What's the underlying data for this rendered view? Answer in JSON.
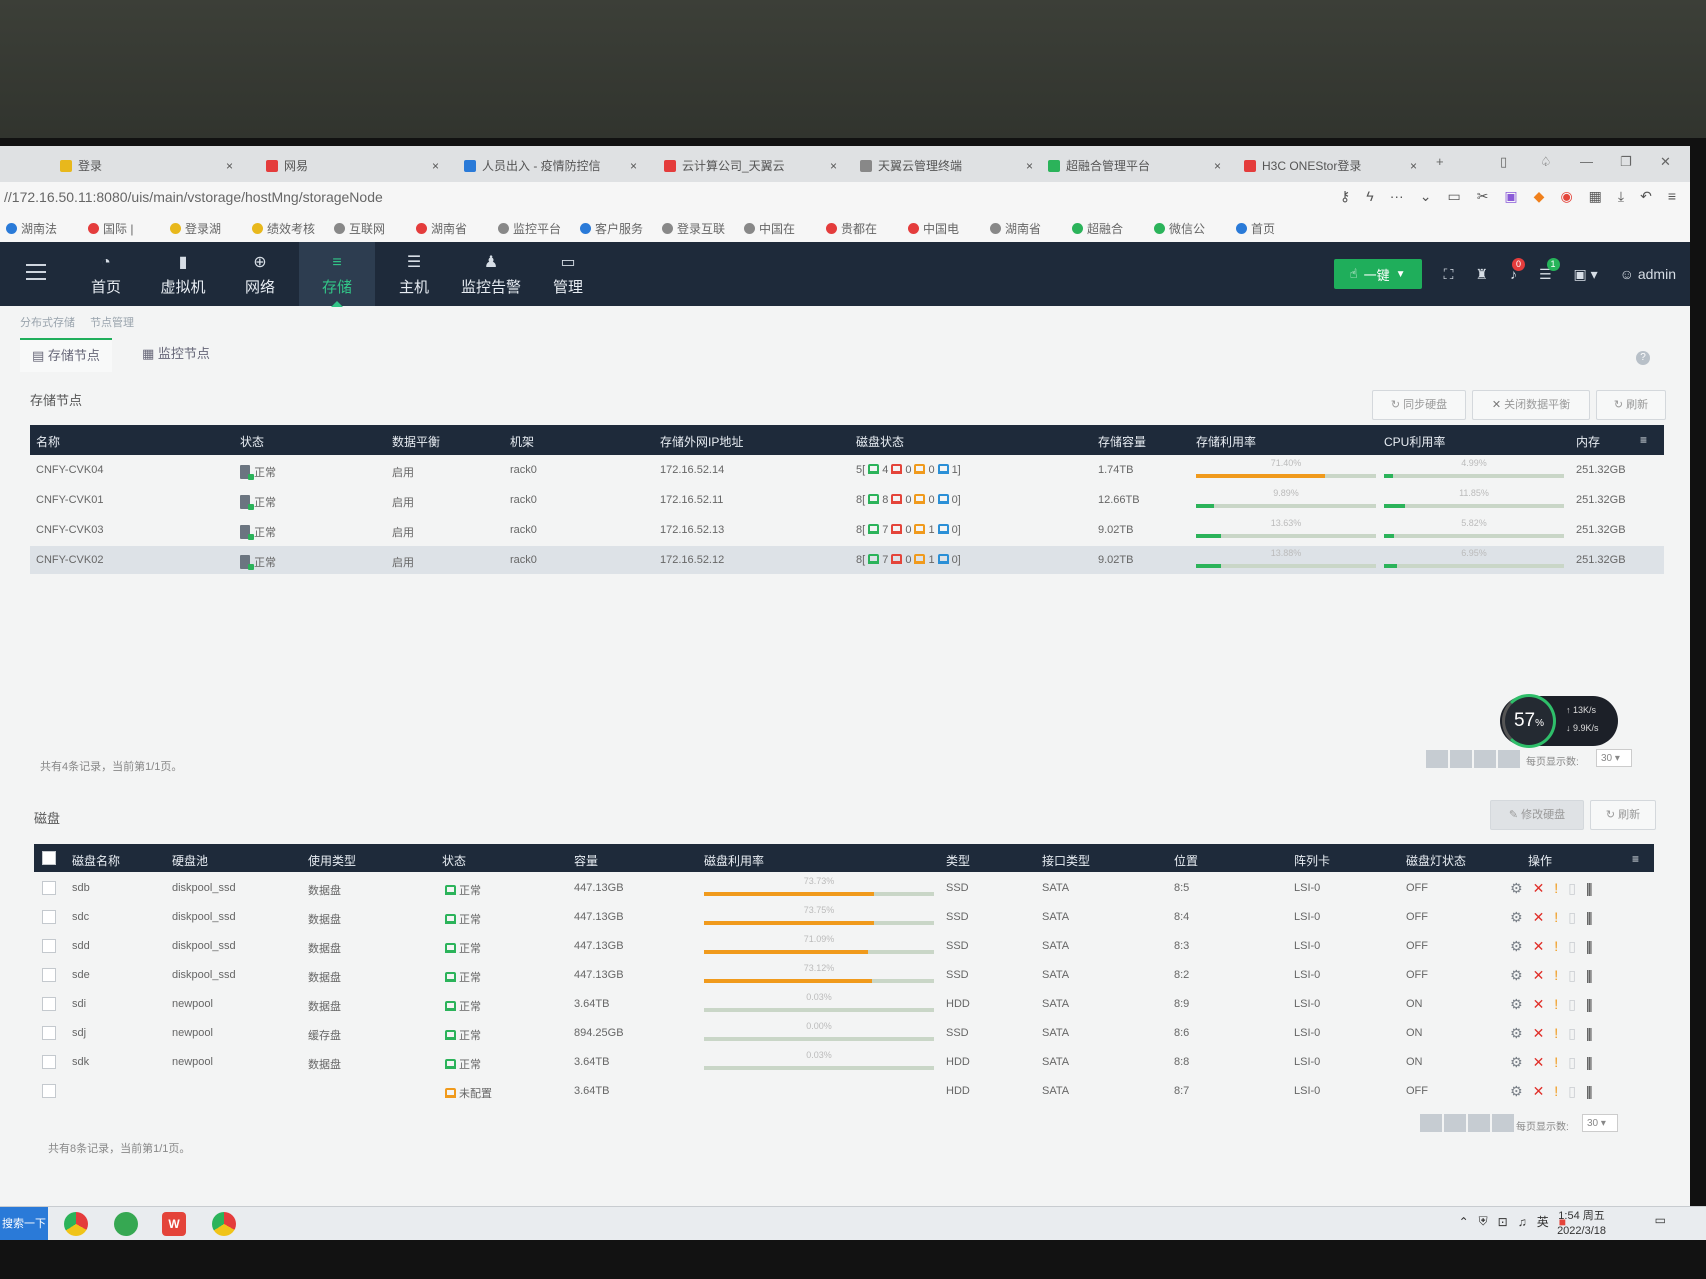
{
  "browser": {
    "tabs": [
      {
        "title": "登录",
        "color": "#e8b81c"
      },
      {
        "title": "网易",
        "color": "#e43c3c"
      },
      {
        "title": "人员出入 - 疫情防控信",
        "color": "#2a7ad8"
      },
      {
        "title": "云计算公司_天翼云",
        "color": "#e43c3c"
      },
      {
        "title": "天翼云管理终端",
        "color": "#888888"
      },
      {
        "title": "超融合管理平台",
        "color": "#2bb35a"
      },
      {
        "title": "H3C ONEStor登录",
        "color": "#e43c3c"
      }
    ],
    "new_tab": "+",
    "url": "//172.16.50.11:8080/uis/main/vstorage/hostMng/storageNode",
    "bookmarks": [
      {
        "label": "湖南法",
        "color": "#2a7ad8"
      },
      {
        "label": "国际 | ",
        "color": "#e43c3c"
      },
      {
        "label": "登录湖",
        "color": "#e8b81c"
      },
      {
        "label": "绩效考核",
        "color": "#e8b81c"
      },
      {
        "label": "互联网",
        "color": "#888888"
      },
      {
        "label": "湖南省",
        "color": "#e43c3c"
      },
      {
        "label": "监控平台",
        "color": "#888888"
      },
      {
        "label": "客户服务",
        "color": "#2a7ad8"
      },
      {
        "label": "登录互联",
        "color": "#888888"
      },
      {
        "label": "中国在",
        "color": "#888888"
      },
      {
        "label": "贵都在",
        "color": "#e43c3c"
      },
      {
        "label": "中国电",
        "color": "#e43c3c"
      },
      {
        "label": "湖南省",
        "color": "#888888"
      },
      {
        "label": "超融合",
        "color": "#2bb35a"
      },
      {
        "label": "微信公",
        "color": "#2bb35a"
      },
      {
        "label": "首页",
        "color": "#2a7ad8"
      }
    ]
  },
  "app": {
    "nav": [
      {
        "label": "首页",
        "icon": "dashboard-icon",
        "glyph": "◔"
      },
      {
        "label": "虚拟机",
        "icon": "vm-icon",
        "glyph": "▮"
      },
      {
        "label": "网络",
        "icon": "globe-icon",
        "glyph": "⊕"
      },
      {
        "label": "存储",
        "icon": "storage-icon",
        "glyph": "≡"
      },
      {
        "label": "主机",
        "icon": "server-icon",
        "glyph": "☰"
      },
      {
        "label": "监控告警",
        "icon": "bell-icon",
        "glyph": "♟"
      },
      {
        "label": "管理",
        "icon": "monitor-icon",
        "glyph": "▭"
      }
    ],
    "one_click_label": "一键",
    "alert_count": "0",
    "task_count": "1",
    "user": "admin"
  },
  "breadcrumb": [
    "分布式存储",
    "节点管理"
  ],
  "subtabs": [
    "存储节点",
    "监控节点"
  ],
  "nodes": {
    "title": "存储节点",
    "buttons": {
      "sync": "同步硬盘",
      "close_balance": "关闭数据平衡",
      "refresh": "刷新"
    },
    "columns": [
      "名称",
      "状态",
      "数据平衡",
      "机架",
      "存储外网IP地址",
      "磁盘状态",
      "存储容量",
      "存储利用率",
      "CPU利用率",
      "内存"
    ],
    "rows": [
      {
        "name": "CNFY-CVK04",
        "status": "正常",
        "balance": "启用",
        "rack": "rack0",
        "ip": "172.16.52.14",
        "disk_total": "5[",
        "d1": "4",
        "d2": "0",
        "d3": "0",
        "d4": "1]",
        "capacity": "1.74TB",
        "usage": "71.40%",
        "usage_val": 71.4,
        "cpu": "4.99%",
        "cpu_val": 4.99,
        "mem": "251.32GB"
      },
      {
        "name": "CNFY-CVK01",
        "status": "正常",
        "balance": "启用",
        "rack": "rack0",
        "ip": "172.16.52.11",
        "disk_total": "8[",
        "d1": "8",
        "d2": "0",
        "d3": "0",
        "d4": "0]",
        "capacity": "12.66TB",
        "usage": "9.89%",
        "usage_val": 9.89,
        "cpu": "11.85%",
        "cpu_val": 11.85,
        "mem": "251.32GB"
      },
      {
        "name": "CNFY-CVK03",
        "status": "正常",
        "balance": "启用",
        "rack": "rack0",
        "ip": "172.16.52.13",
        "disk_total": "8[",
        "d1": "7",
        "d2": "0",
        "d3": "1",
        "d4": "0]",
        "capacity": "9.02TB",
        "usage": "13.63%",
        "usage_val": 13.63,
        "cpu": "5.82%",
        "cpu_val": 5.82,
        "mem": "251.32GB"
      },
      {
        "name": "CNFY-CVK02",
        "status": "正常",
        "balance": "启用",
        "rack": "rack0",
        "ip": "172.16.52.12",
        "disk_total": "8[",
        "d1": "7",
        "d2": "0",
        "d3": "1",
        "d4": "0]",
        "capacity": "9.02TB",
        "usage": "13.88%",
        "usage_val": 13.88,
        "cpu": "6.95%",
        "cpu_val": 6.95,
        "mem": "251.32GB"
      }
    ],
    "summary": "共有4条记录，当前第1/1页。",
    "page_size_label": "每页显示数:",
    "page_size": "30"
  },
  "gauge": {
    "percent": "57",
    "unit": "%",
    "up": "13K/s",
    "down": "9.9K/s"
  },
  "disks": {
    "title": "磁盘",
    "buttons": {
      "edit": "修改硬盘",
      "refresh": "刷新"
    },
    "columns": [
      "磁盘名称",
      "硬盘池",
      "使用类型",
      "状态",
      "容量",
      "磁盘利用率",
      "类型",
      "接口类型",
      "位置",
      "阵列卡",
      "磁盘灯状态",
      "操作"
    ],
    "rows": [
      {
        "name": "sdb",
        "pool": "diskpool_ssd",
        "use": "数据盘",
        "status": "正常",
        "ok": true,
        "cap": "447.13GB",
        "usage": "73.73%",
        "usage_val": 73.73,
        "type": "SSD",
        "iface": "SATA",
        "pos": "8:5",
        "raid": "LSI-0",
        "light": "OFF"
      },
      {
        "name": "sdc",
        "pool": "diskpool_ssd",
        "use": "数据盘",
        "status": "正常",
        "ok": true,
        "cap": "447.13GB",
        "usage": "73.75%",
        "usage_val": 73.75,
        "type": "SSD",
        "iface": "SATA",
        "pos": "8:4",
        "raid": "LSI-0",
        "light": "OFF"
      },
      {
        "name": "sdd",
        "pool": "diskpool_ssd",
        "use": "数据盘",
        "status": "正常",
        "ok": true,
        "cap": "447.13GB",
        "usage": "71.09%",
        "usage_val": 71.09,
        "type": "SSD",
        "iface": "SATA",
        "pos": "8:3",
        "raid": "LSI-0",
        "light": "OFF"
      },
      {
        "name": "sde",
        "pool": "diskpool_ssd",
        "use": "数据盘",
        "status": "正常",
        "ok": true,
        "cap": "447.13GB",
        "usage": "73.12%",
        "usage_val": 73.12,
        "type": "SSD",
        "iface": "SATA",
        "pos": "8:2",
        "raid": "LSI-0",
        "light": "OFF"
      },
      {
        "name": "sdi",
        "pool": "newpool",
        "use": "数据盘",
        "status": "正常",
        "ok": true,
        "cap": "3.64TB",
        "usage": "0.03%",
        "usage_val": 0.03,
        "type": "HDD",
        "iface": "SATA",
        "pos": "8:9",
        "raid": "LSI-0",
        "light": "ON"
      },
      {
        "name": "sdj",
        "pool": "newpool",
        "use": "缓存盘",
        "status": "正常",
        "ok": true,
        "cap": "894.25GB",
        "usage": "0.00%",
        "usage_val": 0.0,
        "type": "SSD",
        "iface": "SATA",
        "pos": "8:6",
        "raid": "LSI-0",
        "light": "ON"
      },
      {
        "name": "sdk",
        "pool": "newpool",
        "use": "数据盘",
        "status": "正常",
        "ok": true,
        "cap": "3.64TB",
        "usage": "0.03%",
        "usage_val": 0.03,
        "type": "HDD",
        "iface": "SATA",
        "pos": "8:8",
        "raid": "LSI-0",
        "light": "ON"
      },
      {
        "name": "",
        "pool": "",
        "use": "",
        "status": "未配置",
        "ok": false,
        "cap": "3.64TB",
        "usage": "",
        "usage_val": null,
        "type": "HDD",
        "iface": "SATA",
        "pos": "8:7",
        "raid": "LSI-0",
        "light": "OFF"
      }
    ],
    "summary": "共有8条记录，当前第1/1页。",
    "page_size_label": "每页显示数:",
    "page_size": "30"
  },
  "taskbar": {
    "search": "搜索一下",
    "ime": "英",
    "time": "1:54 周五",
    "date": "2022/3/18"
  },
  "colors": {
    "nav_bg": "#1e2a3a",
    "accent": "#1fae5b",
    "bar_orange": "#f09a1c",
    "bar_green": "#2bb35a"
  }
}
